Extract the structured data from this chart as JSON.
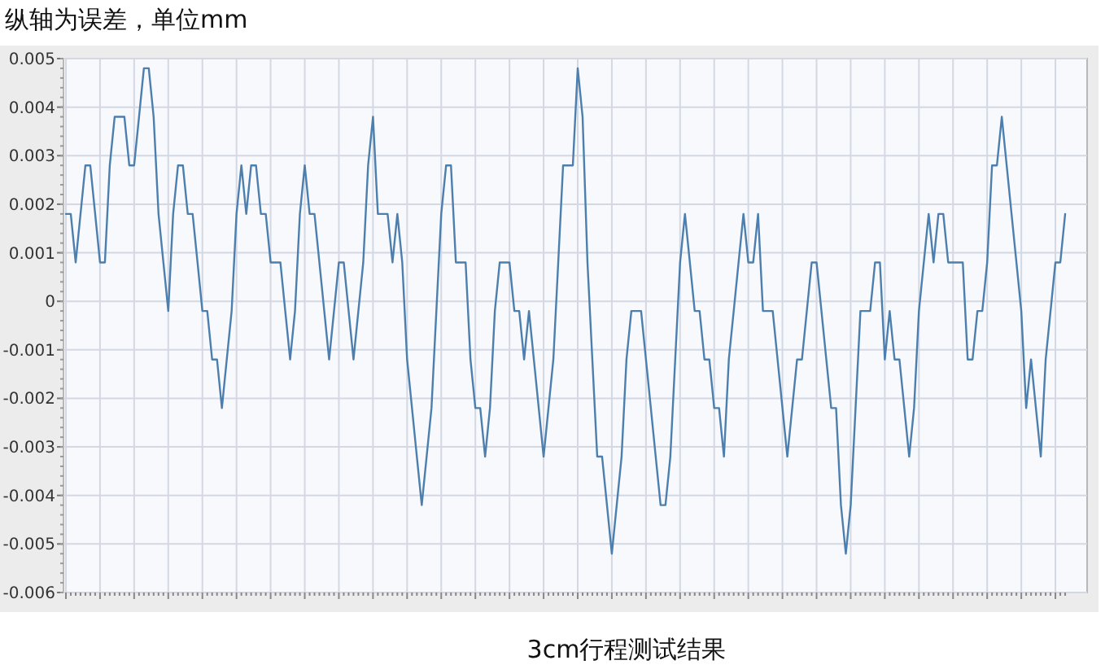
{
  "chart_data": {
    "type": "line",
    "title": "纵轴为误差，单位mm",
    "xlabel": "3cm行程测试结果",
    "categories": [
      null,
      null,
      null,
      null,
      null,
      null,
      null,
      null,
      null,
      null,
      null,
      null,
      null,
      null,
      null,
      null,
      null,
      null,
      null,
      null,
      null,
      null,
      null,
      null,
      null,
      null,
      null,
      null,
      null,
      null,
      null,
      null,
      null,
      null,
      null,
      null,
      null,
      null,
      null,
      null,
      null,
      null,
      null,
      null,
      null,
      null,
      null,
      null,
      null,
      null,
      null,
      null,
      null,
      null,
      null,
      null,
      null,
      null,
      null,
      null,
      null,
      null,
      null,
      null,
      null,
      null,
      null,
      null,
      null,
      null,
      null,
      null,
      null,
      null,
      null,
      null,
      null,
      null,
      null,
      null,
      null,
      null,
      null,
      null,
      null,
      null,
      null,
      null,
      null,
      null,
      null,
      null,
      null,
      null,
      null,
      null,
      null,
      null,
      null,
      null,
      null,
      null,
      null,
      null,
      null,
      null,
      null,
      null,
      null,
      null,
      null,
      null,
      null,
      null,
      null,
      null,
      null,
      null,
      null,
      null,
      null,
      null,
      null,
      null,
      null,
      null,
      null,
      null,
      null,
      null,
      null,
      null,
      null,
      null,
      null,
      null,
      null,
      null,
      null,
      null,
      null,
      null,
      null,
      null,
      null,
      null,
      null,
      null,
      null,
      null,
      null,
      null,
      null,
      null,
      null,
      null,
      null,
      null,
      null,
      null,
      null,
      null,
      null,
      null,
      null,
      null,
      null,
      null,
      null,
      null,
      null,
      null,
      null,
      null,
      null,
      null,
      null,
      null,
      null,
      null,
      null,
      null,
      null,
      null,
      null,
      null,
      null,
      null,
      null,
      null,
      null,
      null,
      null,
      null,
      null,
      null,
      null,
      null,
      null,
      null,
      null,
      null,
      null,
      null,
      null,
      null
    ],
    "series": [
      {
        "color": "#4d7fae",
        "values": [
          0.0018,
          0.0018,
          0.0008,
          0.0018,
          0.0028,
          0.0028,
          0.0018,
          0.0008,
          0.0008,
          0.0028,
          0.0038,
          0.0038,
          0.0038,
          0.0028,
          0.0028,
          0.0038,
          0.0048,
          0.0048,
          0.0038,
          0.0018,
          0.0008,
          -0.0002,
          0.0018,
          0.0028,
          0.0028,
          0.0018,
          0.0018,
          0.0008,
          -0.0002,
          -0.0002,
          -0.0012,
          -0.0012,
          -0.0022,
          -0.0012,
          -0.0002,
          0.0018,
          0.0028,
          0.0018,
          0.0028,
          0.0028,
          0.0018,
          0.0018,
          0.0008,
          0.0008,
          0.0008,
          -0.0002,
          -0.0012,
          -0.0002,
          0.0018,
          0.0028,
          0.0018,
          0.0018,
          0.0008,
          -0.0002,
          -0.0012,
          -0.0002,
          0.0008,
          0.0008,
          -0.0002,
          -0.0012,
          -0.0002,
          0.0008,
          0.0028,
          0.0038,
          0.0018,
          0.0018,
          0.0018,
          0.0008,
          0.0018,
          0.0008,
          -0.0012,
          -0.0022,
          -0.0032,
          -0.0042,
          -0.0032,
          -0.0022,
          -0.0002,
          0.0018,
          0.0028,
          0.0028,
          0.0008,
          0.0008,
          0.0008,
          -0.0012,
          -0.0022,
          -0.0022,
          -0.0032,
          -0.0022,
          -0.0002,
          0.0008,
          0.0008,
          0.0008,
          -0.0002,
          -0.0002,
          -0.0012,
          -0.0002,
          -0.0012,
          -0.0022,
          -0.0032,
          -0.0022,
          -0.0012,
          0.0008,
          0.0028,
          0.0028,
          0.0028,
          0.0048,
          0.0038,
          0.0008,
          -0.0012,
          -0.0032,
          -0.0032,
          -0.0042,
          -0.0052,
          -0.0042,
          -0.0032,
          -0.0012,
          -0.0002,
          -0.0002,
          -0.0002,
          -0.0012,
          -0.0022,
          -0.0032,
          -0.0042,
          -0.0042,
          -0.0032,
          -0.0012,
          0.0008,
          0.0018,
          0.0008,
          -0.0002,
          -0.0002,
          -0.0012,
          -0.0012,
          -0.0022,
          -0.0022,
          -0.0032,
          -0.0012,
          -0.0002,
          0.0008,
          0.0018,
          0.0008,
          0.0008,
          0.0018,
          -0.0002,
          -0.0002,
          -0.0002,
          -0.0012,
          -0.0022,
          -0.0032,
          -0.0022,
          -0.0012,
          -0.0012,
          -0.0002,
          0.0008,
          0.0008,
          -0.0002,
          -0.0012,
          -0.0022,
          -0.0022,
          -0.0042,
          -0.0052,
          -0.0042,
          -0.0022,
          -0.0002,
          -0.0002,
          -0.0002,
          0.0008,
          0.0008,
          -0.0012,
          -0.0002,
          -0.0012,
          -0.0012,
          -0.0022,
          -0.0032,
          -0.0022,
          -0.0002,
          0.0008,
          0.0018,
          0.0008,
          0.0018,
          0.0018,
          0.0008,
          0.0008,
          0.0008,
          0.0008,
          -0.0012,
          -0.0012,
          -0.0002,
          -0.0002,
          0.0008,
          0.0028,
          0.0028,
          0.0038,
          0.0028,
          0.0018,
          0.0008,
          -0.0002,
          -0.0022,
          -0.0012,
          -0.0022,
          -0.0032,
          -0.0012,
          -0.0002,
          0.0008,
          0.0008,
          0.0018
        ]
      }
    ],
    "ylim": [
      -0.006,
      0.005
    ],
    "yticks": [
      -0.006,
      -0.005,
      -0.004,
      -0.003,
      -0.002,
      -0.001,
      0,
      0.001,
      0.002,
      0.003,
      0.004,
      0.005
    ],
    "grid": true
  }
}
